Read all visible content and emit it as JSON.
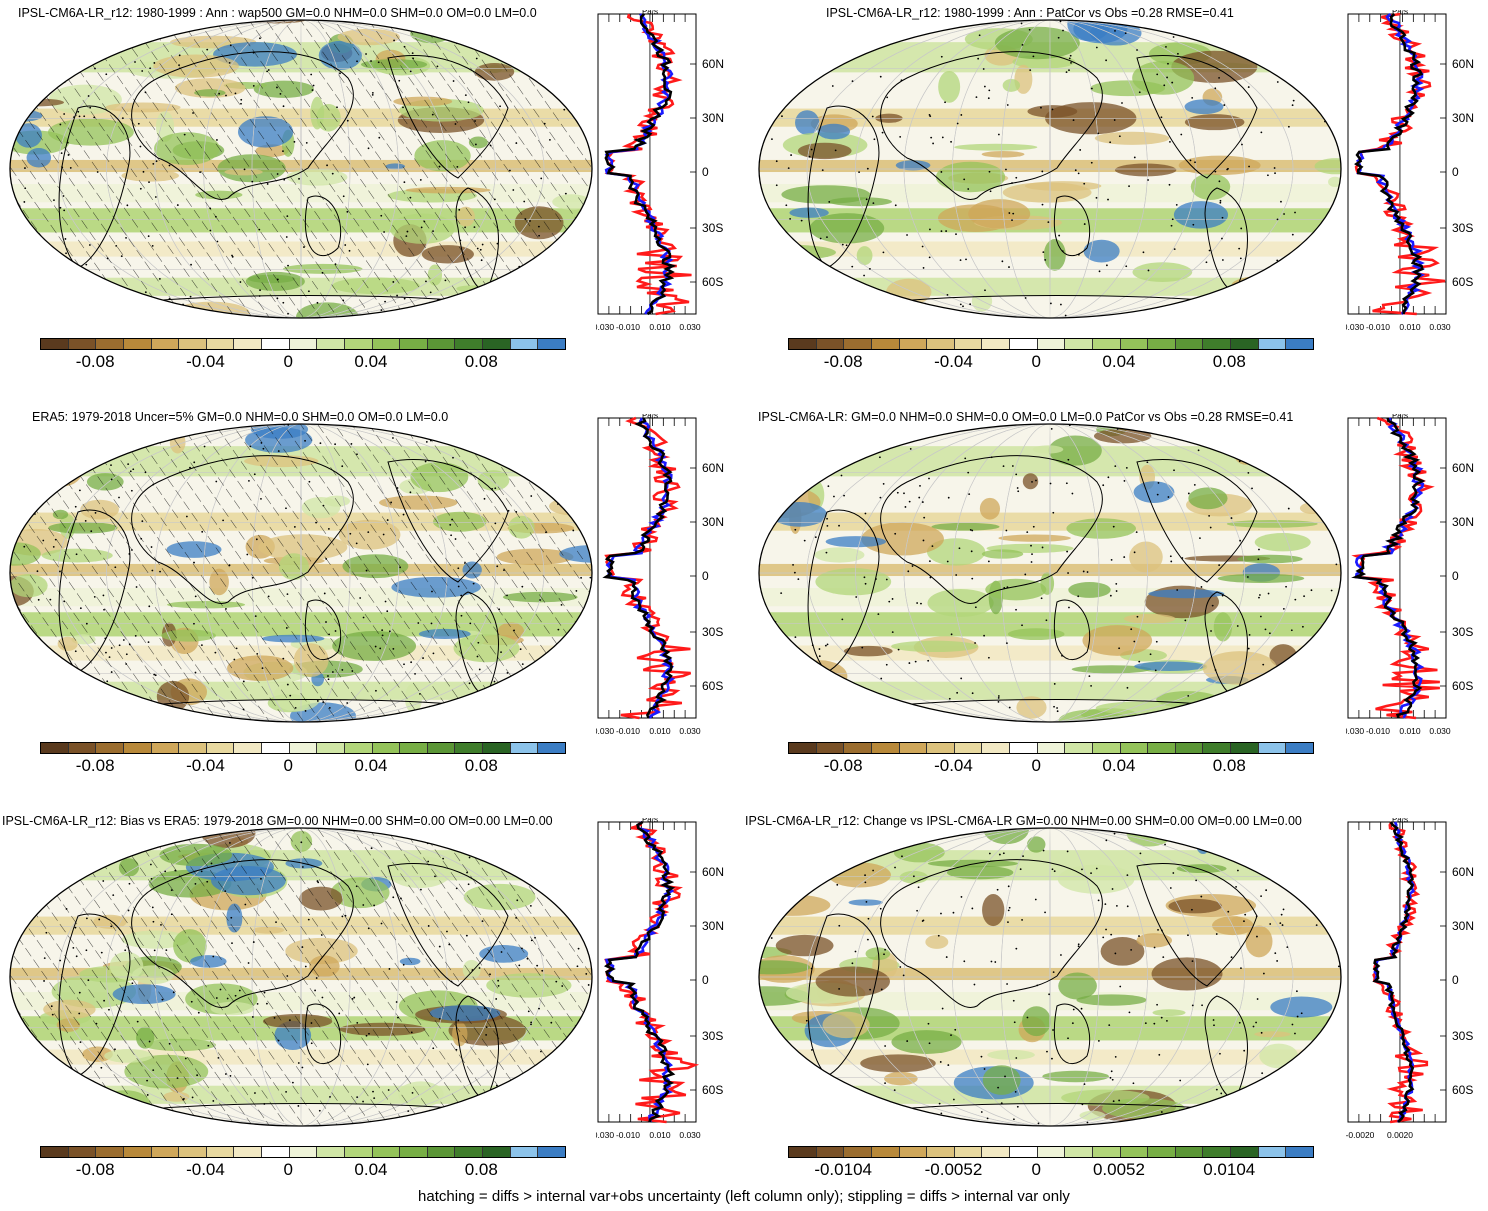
{
  "panels": [
    {
      "title": "IPSL-CM6A-LR_r12: 1980-1999 : Ann : wap500 GM=0.0 NHM=0.0 SHM=0.0 OM=0.0 LM=0.0",
      "cbar_labels": [
        "-0.08",
        "-0.04",
        "0",
        "0.04",
        "0.08"
      ],
      "prof_x_labels": [
        "-0.030",
        "-0.010",
        "0.010",
        "0.030"
      ],
      "hatch": true
    },
    {
      "title": "IPSL-CM6A-LR_r12: 1980-1999 : Ann : PatCor vs Obs =0.28 RMSE=0.41",
      "cbar_labels": [
        "-0.08",
        "-0.04",
        "0",
        "0.04",
        "0.08"
      ],
      "prof_x_labels": [
        "-0.030",
        "-0.010",
        "0.010",
        "0.030"
      ],
      "hatch": false
    },
    {
      "title": "ERA5: 1979-2018 Uncer=5% GM=0.0 NHM=0.0 SHM=0.0 OM=0.0 LM=0.0",
      "cbar_labels": [
        "-0.08",
        "-0.04",
        "0",
        "0.04",
        "0.08"
      ],
      "prof_x_labels": [
        "-0.030",
        "-0.010",
        "0.010",
        "0.030"
      ],
      "hatch": true
    },
    {
      "title": "IPSL-CM6A-LR: GM=0.0 NHM=0.0 SHM=0.0 OM=0.0 LM=0.0 PatCor vs Obs =0.28 RMSE=0.41",
      "cbar_labels": [
        "-0.08",
        "-0.04",
        "0",
        "0.04",
        "0.08"
      ],
      "prof_x_labels": [
        "-0.030",
        "-0.010",
        "0.010",
        "0.030"
      ],
      "hatch": false
    },
    {
      "title": "IPSL-CM6A-LR_r12: Bias vs ERA5: 1979-2018 GM=0.00 NHM=0.00 SHM=0.00 OM=0.00 LM=0.00",
      "cbar_labels": [
        "-0.08",
        "-0.04",
        "0",
        "0.04",
        "0.08"
      ],
      "prof_x_labels": [
        "-0.030",
        "-0.010",
        "0.010",
        "0.030"
      ],
      "hatch": true
    },
    {
      "title": "IPSL-CM6A-LR_r12: Change vs IPSL-CM6A-LR GM=0.00 NHM=0.00 SHM=0.00 OM=0.00 LM=0.00",
      "cbar_labels": [
        "-0.0104",
        "-0.0052",
        "0",
        "0.0052",
        "0.0104"
      ],
      "prof_x_labels": [
        "-0.0020",
        "0.0020"
      ],
      "hatch": false
    }
  ],
  "profile_unit": "Pa/s",
  "lat_labels": [
    "60N",
    "30N",
    "0",
    "30S",
    "60S"
  ],
  "colorbar_colors": [
    "#5a3a1e",
    "#7a5228",
    "#9b6d2f",
    "#b8893a",
    "#cfa75a",
    "#dcc27d",
    "#e8d9a0",
    "#f2e9c4",
    "#ffffff",
    "#eef3d8",
    "#d0e6a6",
    "#b2d67a",
    "#94c35a",
    "#77ae45",
    "#5b9636",
    "#3f7d2b",
    "#2a6424",
    "#8cc3ea",
    "#3b7dc4"
  ],
  "series_colors": {
    "model": "#ff1a1a",
    "obs": "#1a1aff",
    "mean": "#000000"
  },
  "footer": "hatching = diffs > internal var+obs uncertainty (left column only); stippling = diffs > internal var only"
}
